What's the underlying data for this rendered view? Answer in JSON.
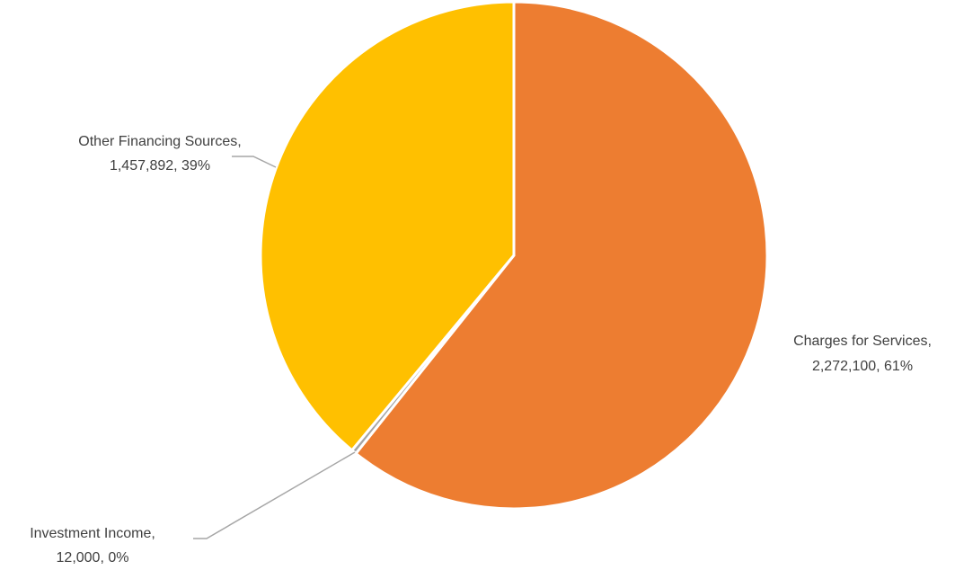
{
  "chart_data": {
    "type": "pie",
    "title": "",
    "slices": [
      {
        "name": "Charges for Services",
        "value": 2272100,
        "value_label": "2,272,100",
        "percent_label": "61%",
        "color": "#ED7D31"
      },
      {
        "name": "Investment Income",
        "value": 12000,
        "value_label": "12,000",
        "percent_label": "0%",
        "color": "#A5A5A5"
      },
      {
        "name": "Other Financing Sources",
        "value": 1457892,
        "value_label": "1,457,892",
        "percent_label": "39%",
        "color": "#FFC000"
      }
    ],
    "start_angle_deg": 0,
    "direction": "clockwise",
    "legend": "none",
    "data_labels": "outside with leader lines"
  },
  "labels": {
    "charges": {
      "line1": "Charges for Services,",
      "line2": "2,272,100, 61%"
    },
    "investment": {
      "line1": "Investment Income,",
      "line2": "12,000, 0%"
    },
    "other": {
      "line1": "Other Financing Sources,",
      "line2": "1,457,892, 39%"
    }
  }
}
